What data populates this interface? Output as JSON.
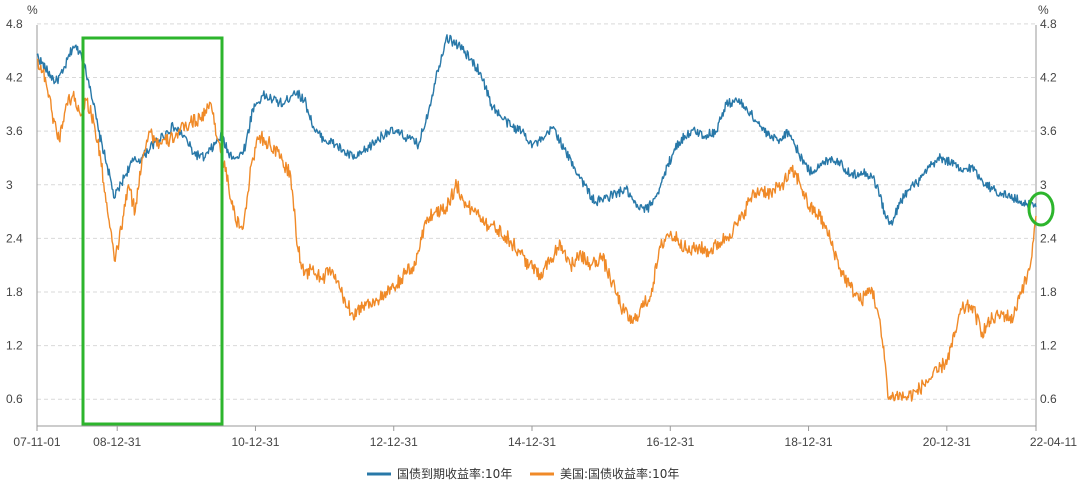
{
  "chart_data": {
    "type": "line",
    "y_unit_left": "%",
    "y_unit_right": "%",
    "ylim": [
      0.3,
      4.9
    ],
    "yticks": [
      "4.8",
      "4.2",
      "3.6",
      "3",
      "2.4",
      "1.8",
      "1.2",
      "0.6"
    ],
    "ytick_values": [
      4.8,
      4.2,
      3.6,
      3.0,
      2.4,
      1.8,
      1.2,
      0.6
    ],
    "xlim": [
      "07-11-01",
      "22-04-11"
    ],
    "xticks": [
      "07-11-01",
      "08-12-31",
      "10-12-31",
      "12-12-31",
      "14-12-31",
      "16-12-31",
      "18-12-31",
      "20-12-31",
      "22-04-11"
    ],
    "xtick_values": [
      2007.83,
      2008.99,
      2010.99,
      2012.99,
      2014.99,
      2016.99,
      2018.99,
      2020.99,
      2022.28
    ],
    "grid": "horizontal dashed",
    "legend_position": "bottom-center",
    "series": [
      {
        "name": "国债到期收益率:10年",
        "color": "#2878A8",
        "x": [
          2007.83,
          2007.95,
          2008.1,
          2008.2,
          2008.35,
          2008.45,
          2008.6,
          2008.72,
          2008.85,
          2008.95,
          2009.1,
          2009.2,
          2009.35,
          2009.5,
          2009.65,
          2009.8,
          2009.95,
          2010.1,
          2010.25,
          2010.4,
          2010.5,
          2010.6,
          2010.75,
          2010.85,
          2010.95,
          2011.1,
          2011.25,
          2011.4,
          2011.55,
          2011.7,
          2011.85,
          2012.0,
          2012.15,
          2012.3,
          2012.45,
          2012.6,
          2012.75,
          2012.9,
          2013.05,
          2013.2,
          2013.35,
          2013.5,
          2013.6,
          2013.75,
          2013.85,
          2013.95,
          2014.1,
          2014.25,
          2014.4,
          2014.55,
          2014.7,
          2014.85,
          2015.0,
          2015.15,
          2015.3,
          2015.45,
          2015.6,
          2015.75,
          2015.9,
          2016.05,
          2016.2,
          2016.35,
          2016.5,
          2016.65,
          2016.8,
          2016.9,
          2017.05,
          2017.2,
          2017.35,
          2017.5,
          2017.65,
          2017.8,
          2017.95,
          2018.1,
          2018.25,
          2018.4,
          2018.55,
          2018.7,
          2018.85,
          2019.0,
          2019.15,
          2019.3,
          2019.45,
          2019.6,
          2019.75,
          2019.9,
          2020.0,
          2020.1,
          2020.2,
          2020.3,
          2020.45,
          2020.6,
          2020.75,
          2020.9,
          2021.05,
          2021.2,
          2021.35,
          2021.5,
          2021.65,
          2021.8,
          2021.95,
          2022.1,
          2022.2,
          2022.28
        ],
        "y": [
          4.45,
          4.3,
          4.15,
          4.25,
          4.55,
          4.5,
          4.1,
          3.6,
          3.2,
          2.85,
          3.1,
          3.25,
          3.3,
          3.45,
          3.55,
          3.65,
          3.55,
          3.35,
          3.3,
          3.45,
          3.55,
          3.35,
          3.3,
          3.45,
          3.85,
          4.0,
          3.95,
          3.9,
          4.05,
          3.95,
          3.6,
          3.5,
          3.45,
          3.35,
          3.3,
          3.4,
          3.5,
          3.6,
          3.58,
          3.52,
          3.45,
          3.85,
          4.2,
          4.65,
          4.6,
          4.55,
          4.4,
          4.25,
          3.9,
          3.75,
          3.65,
          3.6,
          3.45,
          3.5,
          3.65,
          3.4,
          3.2,
          3.0,
          2.8,
          2.85,
          2.9,
          2.95,
          2.75,
          2.72,
          2.9,
          3.1,
          3.4,
          3.55,
          3.6,
          3.55,
          3.6,
          3.9,
          3.95,
          3.85,
          3.7,
          3.55,
          3.5,
          3.6,
          3.35,
          3.15,
          3.2,
          3.3,
          3.25,
          3.1,
          3.15,
          3.1,
          2.95,
          2.65,
          2.55,
          2.8,
          2.95,
          3.05,
          3.2,
          3.3,
          3.25,
          3.15,
          3.2,
          3.05,
          2.95,
          2.9,
          2.85,
          2.8,
          2.78,
          2.75
        ]
      },
      {
        "name": "美国:国债收益率:10年",
        "color": "#F08A28",
        "x": [
          2007.83,
          2007.95,
          2008.05,
          2008.15,
          2008.25,
          2008.35,
          2008.45,
          2008.55,
          2008.65,
          2008.75,
          2008.85,
          2008.95,
          2009.05,
          2009.15,
          2009.25,
          2009.35,
          2009.45,
          2009.6,
          2009.75,
          2009.9,
          2010.05,
          2010.2,
          2010.35,
          2010.45,
          2010.6,
          2010.7,
          2010.8,
          2010.95,
          2011.05,
          2011.2,
          2011.35,
          2011.5,
          2011.6,
          2011.7,
          2011.8,
          2011.95,
          2012.1,
          2012.25,
          2012.4,
          2012.55,
          2012.7,
          2012.85,
          2013.0,
          2013.15,
          2013.3,
          2013.45,
          2013.6,
          2013.75,
          2013.9,
          2014.05,
          2014.2,
          2014.35,
          2014.5,
          2014.65,
          2014.8,
          2014.95,
          2015.1,
          2015.25,
          2015.4,
          2015.55,
          2015.7,
          2015.85,
          2016.0,
          2016.15,
          2016.3,
          2016.45,
          2016.55,
          2016.7,
          2016.85,
          2016.95,
          2017.1,
          2017.25,
          2017.4,
          2017.55,
          2017.7,
          2017.85,
          2018.0,
          2018.15,
          2018.3,
          2018.45,
          2018.6,
          2018.75,
          2018.85,
          2019.0,
          2019.15,
          2019.3,
          2019.45,
          2019.6,
          2019.75,
          2019.9,
          2020.0,
          2020.1,
          2020.15,
          2020.25,
          2020.4,
          2020.55,
          2020.7,
          2020.85,
          2021.0,
          2021.1,
          2021.2,
          2021.35,
          2021.5,
          2021.65,
          2021.8,
          2021.95,
          2022.05,
          2022.15,
          2022.22,
          2022.28
        ],
        "y": [
          4.4,
          4.2,
          3.8,
          3.5,
          3.9,
          4.0,
          3.8,
          3.95,
          3.7,
          3.3,
          2.7,
          2.15,
          2.5,
          3.0,
          2.7,
          3.3,
          3.6,
          3.45,
          3.5,
          3.6,
          3.7,
          3.75,
          3.9,
          3.5,
          3.0,
          2.6,
          2.5,
          3.3,
          3.55,
          3.45,
          3.3,
          3.1,
          2.3,
          2.0,
          2.05,
          1.95,
          2.05,
          1.75,
          1.55,
          1.65,
          1.7,
          1.75,
          1.85,
          2.0,
          2.1,
          2.6,
          2.7,
          2.75,
          3.0,
          2.75,
          2.7,
          2.55,
          2.5,
          2.4,
          2.25,
          2.1,
          2.0,
          2.15,
          2.35,
          2.1,
          2.2,
          2.1,
          2.2,
          1.9,
          1.6,
          1.45,
          1.6,
          1.75,
          2.3,
          2.45,
          2.4,
          2.25,
          2.3,
          2.25,
          2.35,
          2.45,
          2.6,
          2.85,
          2.95,
          2.9,
          3.0,
          3.15,
          3.05,
          2.75,
          2.65,
          2.4,
          2.05,
          1.85,
          1.7,
          1.85,
          1.55,
          1.0,
          0.6,
          0.65,
          0.62,
          0.68,
          0.8,
          0.9,
          1.05,
          1.3,
          1.6,
          1.65,
          1.35,
          1.5,
          1.55,
          1.5,
          1.8,
          1.95,
          2.2,
          2.65
        ]
      }
    ]
  }
}
